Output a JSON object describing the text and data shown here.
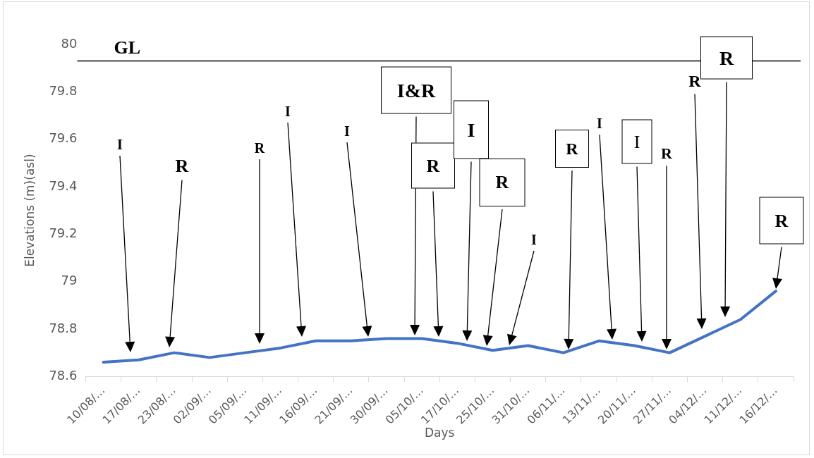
{
  "chart_data": {
    "type": "line",
    "xlabel": "Days",
    "ylabel": "Elevations (m)(asl)",
    "categories": [
      "10/08/…",
      "17/08/…",
      "23/08/…",
      "02/09/…",
      "05/09/…",
      "11/09/…",
      "16/09/…",
      "21/09/…",
      "30/09/…",
      "05/10/…",
      "17/10/…",
      "25/10/…",
      "31/10/…",
      "06/11/…",
      "13/11/…",
      "20/11/…",
      "27/11/…",
      "04/12/…",
      "11/12/…",
      "16/12/…"
    ],
    "series": [
      {
        "color": "#4472c4",
        "values": [
          78.66,
          78.67,
          78.7,
          78.68,
          78.7,
          78.72,
          78.75,
          78.75,
          78.76,
          78.76,
          78.74,
          78.71,
          78.73,
          78.7,
          78.75,
          78.73,
          78.7,
          78.77,
          78.84,
          78.96
        ]
      }
    ],
    "ylim": [
      78.6,
      80
    ],
    "yticks": [
      78.6,
      78.8,
      79,
      79.2,
      79.4,
      79.6,
      79.8,
      80
    ],
    "grid": false,
    "legend": false,
    "marker": "none",
    "line_style": "solid",
    "ref_lines": [
      {
        "axis": "y",
        "value": 79.93,
        "label": "GL",
        "color": "#000000"
      }
    ],
    "annotations": [
      "I",
      "R",
      "R",
      "I",
      "I",
      "I&R",
      "R",
      "I",
      "R",
      "I",
      "R",
      "I",
      "I",
      "R",
      "R",
      "R",
      "R"
    ]
  }
}
